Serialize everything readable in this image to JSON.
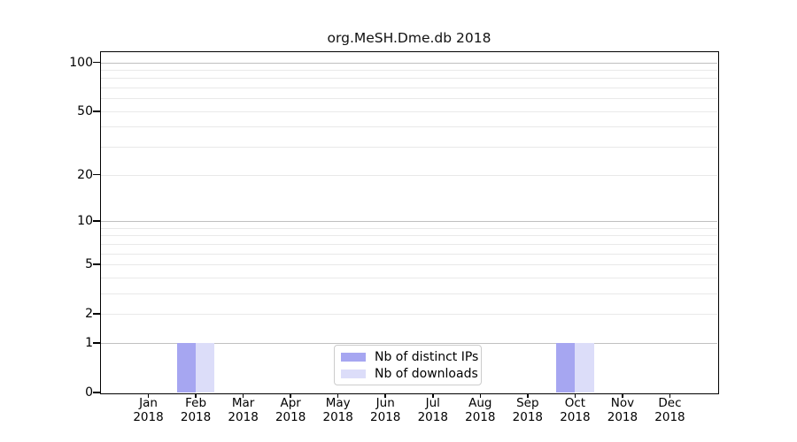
{
  "page": {
    "background": "#ffffff"
  },
  "chart_data": {
    "type": "bar",
    "title": "org.MeSH.Dme.db 2018",
    "categories": [
      [
        "Jan",
        "2018"
      ],
      [
        "Feb",
        "2018"
      ],
      [
        "Mar",
        "2018"
      ],
      [
        "Apr",
        "2018"
      ],
      [
        "May",
        "2018"
      ],
      [
        "Jun",
        "2018"
      ],
      [
        "Jul",
        "2018"
      ],
      [
        "Aug",
        "2018"
      ],
      [
        "Sep",
        "2018"
      ],
      [
        "Oct",
        "2018"
      ],
      [
        "Nov",
        "2018"
      ],
      [
        "Dec",
        "2018"
      ]
    ],
    "series": [
      {
        "name": "Nb of distinct IPs",
        "color": "#a6a6f1",
        "values": [
          0,
          1,
          0,
          0,
          0,
          0,
          0,
          0,
          0,
          1,
          0,
          0
        ]
      },
      {
        "name": "Nb of downloads",
        "color": "#dcddf9",
        "values": [
          0,
          1,
          0,
          0,
          0,
          0,
          0,
          0,
          0,
          1,
          0,
          0
        ]
      }
    ],
    "bar_width_fraction": 0.4,
    "xlabel": "",
    "ylabel": "",
    "y_axis": {
      "scale": "log1p",
      "min": 0,
      "max": 100,
      "tick_values": [
        0,
        1,
        2,
        5,
        10,
        20,
        50,
        100
      ],
      "major_gridlines": [
        1,
        10,
        100
      ],
      "minor_gridlines": [
        2,
        3,
        4,
        5,
        6,
        7,
        8,
        9,
        20,
        30,
        40,
        50,
        60,
        70,
        80,
        90
      ]
    },
    "legend": {
      "location": "lower center"
    },
    "grid": true,
    "colors": {
      "major_grid": "#c0c0c0",
      "minor_grid": "#e9e9e9",
      "axis": "#000000",
      "text": "#000000",
      "legend_border": "#cccccc",
      "legend_bg": "#ffffff"
    }
  }
}
